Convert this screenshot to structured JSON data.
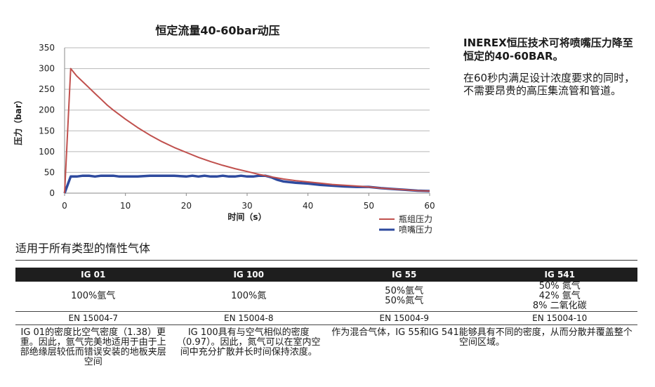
{
  "chart_data": {
    "type": "line",
    "title": "恒定流量40-60bar动压",
    "xlabel": "时间（s）",
    "ylabel": "压力（bar）",
    "xlim": [
      0,
      60
    ],
    "ylim": [
      0,
      350
    ],
    "x_ticks": [
      "0",
      "10",
      "20",
      "30",
      "40",
      "50",
      "60"
    ],
    "y_ticks": [
      "0",
      "50",
      "100",
      "150",
      "200",
      "250",
      "300",
      "350"
    ],
    "grid": "horizontal",
    "legend_position": "bottom-right",
    "series": [
      {
        "name": "瓶组压力",
        "color": "#c0504d",
        "x": [
          0,
          1,
          2,
          3,
          4,
          5,
          6,
          7,
          8,
          9,
          10,
          12,
          14,
          16,
          18,
          20,
          22,
          24,
          26,
          28,
          30,
          32,
          34,
          36,
          38,
          40,
          42,
          44,
          46,
          48,
          50,
          52,
          54,
          56,
          58,
          60
        ],
        "y": [
          0,
          300,
          282,
          268,
          254,
          240,
          226,
          212,
          200,
          189,
          178,
          158,
          140,
          124,
          110,
          98,
          86,
          76,
          67,
          59,
          52,
          45,
          39,
          34,
          30,
          27,
          24,
          21,
          19,
          17,
          15,
          12,
          10,
          8,
          6,
          5
        ]
      },
      {
        "name": "喷嘴压力",
        "color": "#2e4a9e",
        "x": [
          0,
          1,
          2,
          3,
          4,
          5,
          6,
          7,
          8,
          9,
          10,
          12,
          14,
          16,
          18,
          20,
          21,
          22,
          23,
          24,
          25,
          26,
          27,
          28,
          29,
          30,
          31,
          32,
          33,
          34,
          35,
          36,
          38,
          40,
          42,
          44,
          46,
          48,
          50,
          52,
          54,
          56,
          58,
          60
        ],
        "y": [
          0,
          40,
          40,
          42,
          42,
          40,
          42,
          42,
          42,
          40,
          40,
          40,
          42,
          42,
          42,
          40,
          42,
          40,
          42,
          40,
          40,
          42,
          40,
          40,
          42,
          40,
          40,
          42,
          42,
          38,
          32,
          28,
          25,
          23,
          20,
          18,
          16,
          15,
          15,
          12,
          10,
          8,
          6,
          5
        ]
      }
    ]
  },
  "side": {
    "bold_line": "INEREX恒压技术可将喷嘴压力降至恒定的40-60BAR。",
    "paragraph": "在60秒内满足设计浓度要求的同时，不需要昂贵的高压集流管和管道。"
  },
  "section_title": "适用于所有类型的惰性气体",
  "table": {
    "headers": [
      "IG 01",
      "IG 100",
      "IG 55",
      "IG 541"
    ],
    "gases": [
      [
        "100%氩气"
      ],
      [
        "100%氮"
      ],
      [
        "50%氩气",
        "50%氮气"
      ],
      [
        "50% 氮气",
        "42% 氩气",
        "8% 二氧化碳"
      ]
    ],
    "standards": [
      "EN 15004-7",
      "EN 15004-8",
      "EN 15004-9",
      "EN 15004-10"
    ],
    "descriptions": {
      "ig01": "IG 01的密度比空气密度（1.38）更重。因此，氩气完美地适用于由于上部绝缘层较低而错误安装的地板夹层空间",
      "ig100": "IG 100具有与空气相似的密度（0.97）。因此，氮气可以在室内空间中充分扩散并长时间保持浓度。",
      "ig55_541": "作为混合气体，IG 55和IG 541能够具有不同的密度，从而分散并覆盖整个空间区域。"
    }
  }
}
